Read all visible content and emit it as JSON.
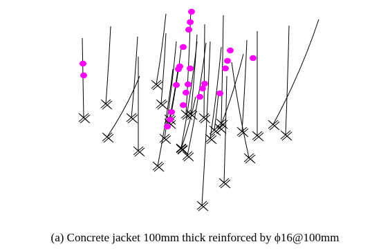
{
  "caption": "(a) Concrete jacket 100mm thick reinforced by ϕ16@100mm",
  "colors": {
    "column": "#000000",
    "hinge": "#ff00ff",
    "support": "#000000",
    "background": "#ffffff"
  },
  "figure": {
    "type": "3D structural frame deformed shape with plastic hinges",
    "support_symbol": "fixed-support-cross-icon",
    "hinge_symbol": "plastic-hinge-dot"
  }
}
